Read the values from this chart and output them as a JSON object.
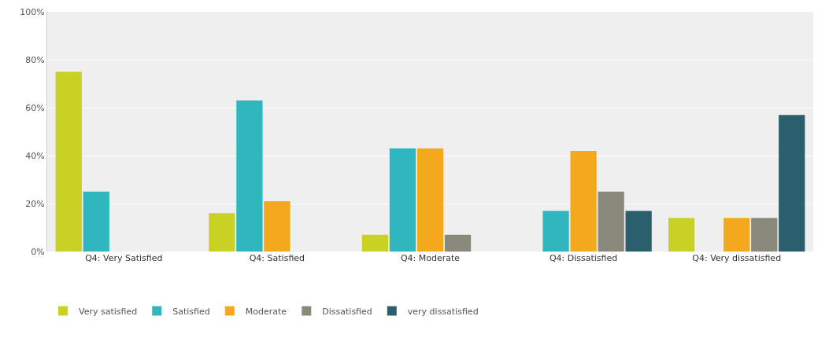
{
  "chart_data": {
    "type": "bar",
    "categories": [
      "Q4: Very Satisfied",
      "Q4: Satisfied",
      "Q4: Moderate",
      "Q4: Dissatisfied",
      "Q4: Very dissatisfied"
    ],
    "series": [
      {
        "name": "Very satisfied",
        "color": "#c9d224",
        "values": [
          75,
          16,
          7,
          0,
          14
        ]
      },
      {
        "name": "Satisfied",
        "color": "#2fb6bf",
        "values": [
          25,
          63,
          43,
          17,
          0
        ]
      },
      {
        "name": "Moderate",
        "color": "#f4a81d",
        "values": [
          0,
          21,
          43,
          42,
          14
        ]
      },
      {
        "name": "Dissatisfied",
        "color": "#8a8a7c",
        "values": [
          0,
          0,
          7,
          25,
          14
        ]
      },
      {
        "name": "very dissatisfied",
        "color": "#2c5f6e",
        "values": [
          0,
          0,
          0,
          17,
          57
        ]
      }
    ],
    "ylim": [
      0,
      100
    ],
    "yticks": [
      {
        "value": 0,
        "label": "0%"
      },
      {
        "value": 20,
        "label": "20%"
      },
      {
        "value": 40,
        "label": "40%"
      },
      {
        "value": 60,
        "label": "60%"
      },
      {
        "value": 80,
        "label": "80%"
      },
      {
        "value": 100,
        "label": "100%"
      }
    ],
    "grid": "y",
    "legend": "bottom left"
  }
}
